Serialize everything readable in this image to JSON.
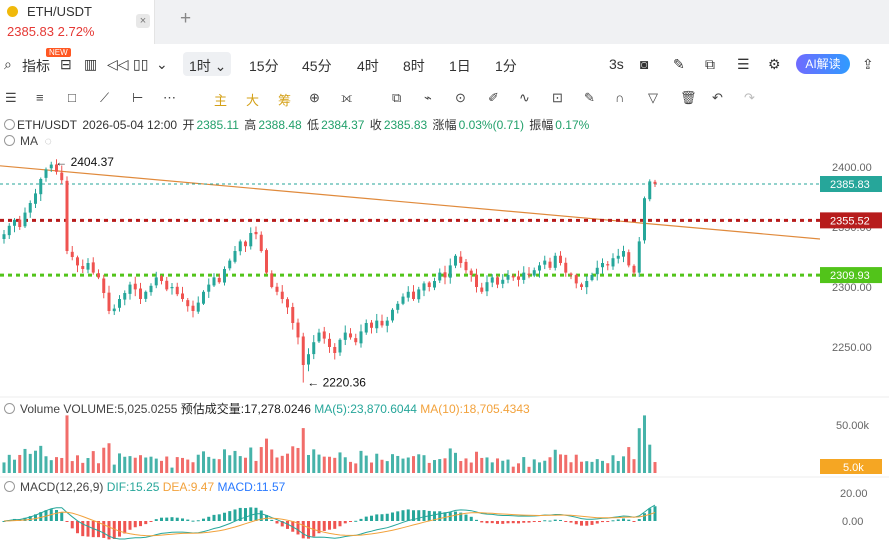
{
  "tab": {
    "title": "ETH/USDT",
    "price": "2385.83",
    "change": "2.72%",
    "close": "×",
    "add": "+"
  },
  "toolbar": {
    "indicator_label": "指标",
    "new_badge": "NEW",
    "intervals": [
      "1时",
      "15分",
      "45分",
      "4时",
      "8时",
      "1日",
      "1分"
    ],
    "refresh": "3s",
    "ai_label": "AI解读"
  },
  "drawtools": {
    "main": "主",
    "big": "大",
    "chip": "筹"
  },
  "info": {
    "symbol": "ETH/USDT",
    "time": "2026-05-04 12:00",
    "open_label": "开",
    "open": "2385.11",
    "high_label": "高",
    "high": "2388.48",
    "low_label": "低",
    "low": "2384.37",
    "close_label": "收",
    "close": "2385.83",
    "chg_label": "涨幅",
    "chg": "0.03%(0.71)",
    "amp_label": "振幅",
    "amp": "0.17%"
  },
  "ma_label": "MA",
  "volume": {
    "label": "Volume",
    "volume": "VOLUME:5,025.0255",
    "est": "预估成交量:17,278.0246",
    "ma5": "MA(5):23,870.6044",
    "ma10": "MA(10):18,705.4343"
  },
  "macd": {
    "label": "MACD(12,26,9)",
    "dif": "DIF:15.25",
    "dea": "DEA:9.47",
    "macd": "MACD:11.57"
  },
  "colors": {
    "up": "#26a69a",
    "down": "#ef5350",
    "red_level": "#b71c1c",
    "green_level": "#52c41a",
    "trend": "#e08a3c",
    "current": "#26a69a",
    "vol_tag": "#f5a623"
  },
  "chart_data": {
    "type": "candlestick",
    "symbol": "ETH/USDT",
    "interval": "1时",
    "ylim": [
      2215,
      2412
    ],
    "yticks": [
      "2400.00",
      "2350.00",
      "2300.00",
      "2250.00"
    ],
    "high_annotation": "2404.37",
    "low_annotation": "2220.36",
    "current_price": "2385.83",
    "levels": [
      {
        "value": "2355.52",
        "color": "red-dotted"
      },
      {
        "value": "2309.93",
        "color": "green-dotted"
      }
    ],
    "trendline": {
      "start": 2401,
      "end": 2340
    },
    "closes": [
      2344,
      2351,
      2356,
      2350,
      2362,
      2370,
      2378,
      2390,
      2398,
      2402,
      2396,
      2389,
      2330,
      2325,
      2318,
      2315,
      2320,
      2312,
      2308,
      2295,
      2280,
      2282,
      2290,
      2295,
      2302,
      2298,
      2290,
      2296,
      2301,
      2308,
      2305,
      2298,
      2300,
      2294,
      2290,
      2284,
      2280,
      2287,
      2296,
      2302,
      2308,
      2304,
      2315,
      2322,
      2330,
      2338,
      2334,
      2345,
      2344,
      2330,
      2312,
      2300,
      2296,
      2290,
      2283,
      2270,
      2258,
      2235,
      2244,
      2254,
      2262,
      2257,
      2250,
      2245,
      2256,
      2262,
      2258,
      2254,
      2263,
      2270,
      2266,
      2272,
      2268,
      2272,
      2281,
      2286,
      2292,
      2296,
      2290,
      2298,
      2303,
      2300,
      2305,
      2312,
      2308,
      2318,
      2326,
      2320,
      2314,
      2310,
      2300,
      2296,
      2304,
      2308,
      2302,
      2306,
      2310,
      2308,
      2306,
      2312,
      2310,
      2314,
      2318,
      2322,
      2316,
      2326,
      2320,
      2312,
      2310,
      2303,
      2300,
      2305,
      2310,
      2316,
      2320,
      2318,
      2324,
      2326,
      2330,
      2318,
      2312,
      2338,
      2374,
      2388,
      2386
    ],
    "volume": {
      "ylim": [
        0,
        60
      ],
      "yticks": [
        "50.00k"
      ],
      "current_tag": "5.0k"
    },
    "macd": {
      "yticks": [
        "20.00",
        "0.00"
      ]
    }
  }
}
